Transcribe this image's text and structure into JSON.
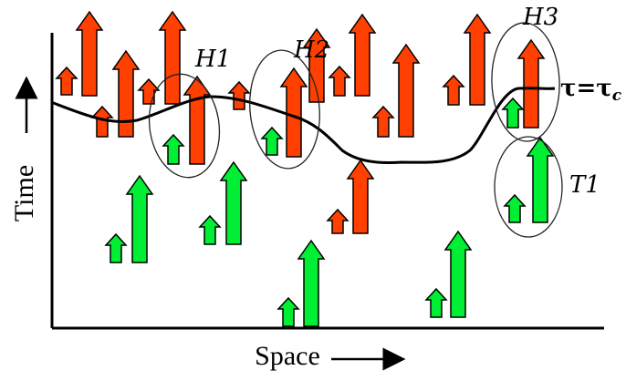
{
  "axes": {
    "xlabel": "Space",
    "ylabel": "Time"
  },
  "curve_label": {
    "base": "τ",
    "eq": "=",
    "rhs": "τ",
    "sub": "c"
  },
  "groups": [
    {
      "name": "H1"
    },
    {
      "name": "H2"
    },
    {
      "name": "H3"
    },
    {
      "name": "T1"
    }
  ],
  "colors": {
    "hot": "#ff4000",
    "cold": "#00ee33",
    "stroke": "#000000"
  }
}
